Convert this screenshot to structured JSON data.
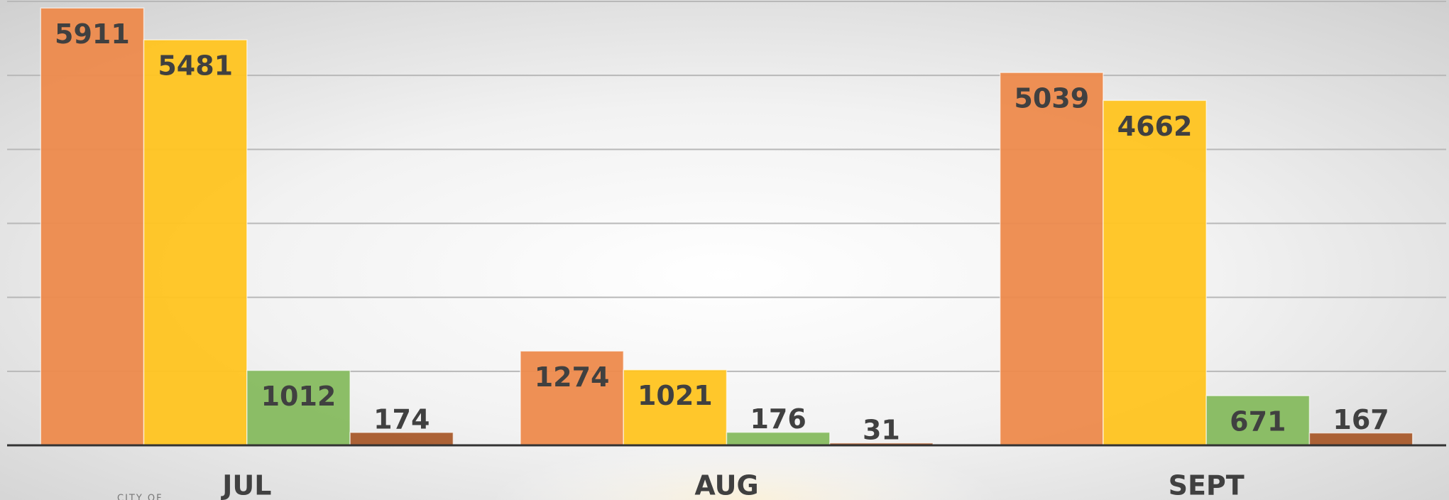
{
  "chart_data": {
    "type": "bar",
    "categories": [
      "JUL",
      "AUG",
      "SEPT"
    ],
    "series": [
      {
        "color": "#ED8A4C",
        "values": [
          5911,
          1274,
          5039
        ]
      },
      {
        "color": "#FFC420",
        "values": [
          5481,
          1021,
          4662
        ]
      },
      {
        "color": "#86BA5F",
        "values": [
          1012,
          176,
          671
        ]
      },
      {
        "color": "#A85A2B",
        "values": [
          174,
          31,
          167
        ]
      }
    ],
    "ylim": [
      0,
      6000
    ],
    "yticks": [
      0,
      1000,
      2000,
      3000,
      4000,
      5000,
      6000
    ],
    "grid": true,
    "annotation": "CITY OF"
  }
}
